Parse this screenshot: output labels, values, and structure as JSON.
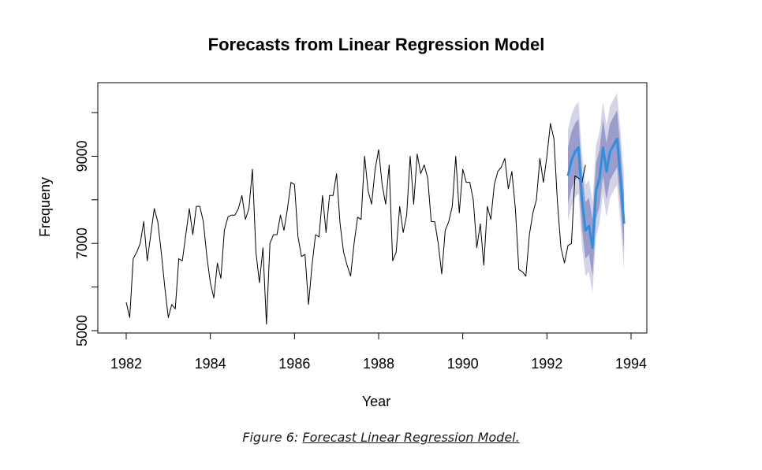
{
  "chart_data": {
    "type": "line",
    "title": "Forecasts from Linear Regression Model",
    "xlabel": "Year",
    "ylabel": "Frequeny",
    "xlim": [
      1982,
      1994
    ],
    "ylim": [
      5000,
      10000
    ],
    "x_ticks": [
      "1982",
      "1984",
      "1986",
      "1988",
      "1990",
      "1992",
      "1994"
    ],
    "y_ticks": [
      "5000",
      "7000",
      "9000"
    ],
    "grid": false,
    "legend": "none",
    "colors": {
      "history": "#000000",
      "forecast": "#2e8fe0",
      "pi80": "#9a9ccc",
      "pi95": "#d4d4e6"
    },
    "series": [
      {
        "role": "history",
        "x_start": 1982.0,
        "step": 0.083333,
        "values": [
          5650,
          5300,
          6650,
          6800,
          7000,
          7500,
          6600,
          7200,
          7800,
          7500,
          6800,
          6000,
          5300,
          5600,
          5500,
          6650,
          6600,
          7200,
          7800,
          7200,
          7850,
          7850,
          7500,
          6700,
          6100,
          5750,
          6550,
          6200,
          7300,
          7600,
          7650,
          7650,
          7800,
          8100,
          7550,
          7800,
          8700,
          6800,
          6100,
          6900,
          5150,
          7000,
          7200,
          7200,
          7650,
          7300,
          7800,
          8400,
          8350,
          7150,
          6700,
          6750,
          5600,
          6500,
          7200,
          7150,
          8100,
          7250,
          8100,
          8100,
          8600,
          7450,
          6800,
          6500,
          6250,
          7000,
          7600,
          7550,
          9000,
          8200,
          7900,
          8700,
          9150,
          8350,
          7900,
          8800,
          6600,
          6800,
          7850,
          7250,
          7650,
          9000,
          7900,
          9050,
          8600,
          8800,
          8500,
          7500,
          7500,
          7000,
          6300,
          7300,
          7500,
          7850,
          9000,
          7700,
          8700,
          8400,
          8400,
          8000,
          6900,
          7450,
          6500,
          7850,
          7550,
          8350,
          8650,
          8750,
          8950,
          8250,
          8650,
          7800,
          6400,
          6350,
          6250,
          7200,
          7700,
          8000,
          8950,
          8400,
          9000,
          9750,
          9400,
          7950,
          6900,
          6550,
          6950,
          7000,
          8550,
          8500,
          8400,
          8800
        ]
      },
      {
        "role": "forecast",
        "x_start": 1992.5,
        "step": 0.083333,
        "values": [
          8550,
          8900,
          9100,
          9200,
          8000,
          7300,
          7400,
          6900,
          8200,
          8500,
          9200,
          8650,
          9100,
          9250,
          9400,
          8500,
          7450
        ],
        "lo80": [
          7900,
          8250,
          8450,
          8550,
          7350,
          6650,
          6750,
          6250,
          7550,
          7850,
          8550,
          8000,
          8450,
          8600,
          8750,
          7850,
          6800
        ],
        "hi80": [
          9200,
          9550,
          9750,
          9850,
          8650,
          7950,
          8050,
          7550,
          8850,
          9150,
          9850,
          9300,
          9750,
          9900,
          10050,
          9150,
          8100
        ],
        "lo95": [
          7500,
          7850,
          8050,
          8150,
          6950,
          6250,
          6350,
          5850,
          7150,
          7450,
          8150,
          7600,
          8050,
          8200,
          8350,
          7450,
          6400
        ],
        "hi95": [
          9600,
          9950,
          10150,
          10250,
          9050,
          8350,
          8450,
          7950,
          9250,
          9550,
          10250,
          9700,
          10150,
          10300,
          10450,
          9550,
          8500
        ]
      }
    ]
  },
  "caption": {
    "prefix": "Figure 6: ",
    "text": "Forecast Linear Regression Model."
  }
}
